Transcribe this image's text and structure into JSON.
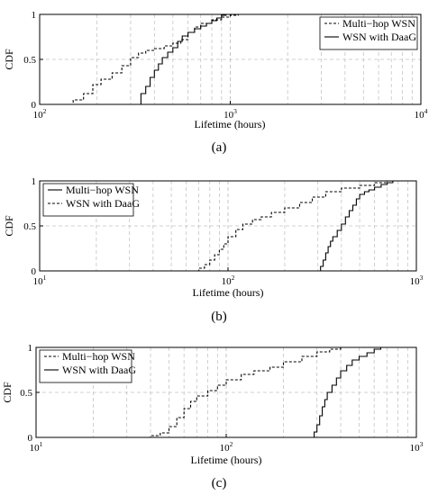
{
  "chart_data": [
    {
      "type": "line",
      "panel_label": "(a)",
      "xscale": "log",
      "xlim": [
        100,
        10000
      ],
      "ylim": [
        0,
        1
      ],
      "xticks": [
        "10",
        "10",
        "10"
      ],
      "xtick_exponents": [
        "2",
        "3",
        "4"
      ],
      "yticks": [
        "0",
        "0.5",
        "1"
      ],
      "xlabel": "Lifetime (hours)",
      "ylabel": "CDF",
      "grid": true,
      "legend_position": "top-right",
      "series": [
        {
          "name": "Multi−hop WSN",
          "style": "dashed",
          "x": [
            130,
            150,
            170,
            190,
            210,
            240,
            270,
            300,
            330,
            360,
            400,
            450,
            500,
            550,
            600,
            650,
            700,
            800,
            900,
            1000,
            1100
          ],
          "y": [
            0.0,
            0.05,
            0.12,
            0.22,
            0.28,
            0.35,
            0.43,
            0.52,
            0.57,
            0.6,
            0.62,
            0.65,
            0.68,
            0.72,
            0.8,
            0.86,
            0.9,
            0.94,
            0.97,
            0.99,
            1.0
          ]
        },
        {
          "name": "WSN with DaaG",
          "style": "solid",
          "x": [
            320,
            340,
            360,
            380,
            400,
            420,
            440,
            470,
            500,
            530,
            560,
            600,
            650,
            700,
            750,
            800,
            850,
            900,
            950
          ],
          "y": [
            0.0,
            0.12,
            0.2,
            0.3,
            0.38,
            0.45,
            0.52,
            0.58,
            0.63,
            0.7,
            0.76,
            0.8,
            0.84,
            0.87,
            0.9,
            0.93,
            0.96,
            0.99,
            1.0
          ]
        }
      ]
    },
    {
      "type": "line",
      "panel_label": "(b)",
      "xscale": "log",
      "xlim": [
        10,
        1000
      ],
      "ylim": [
        0,
        1
      ],
      "xticks": [
        "10",
        "10",
        "10"
      ],
      "xtick_exponents": [
        "1",
        "2",
        "3"
      ],
      "yticks": [
        "0",
        "0.5",
        "1"
      ],
      "xlabel": "Lifetime (hours)",
      "ylabel": "CDF",
      "grid": true,
      "legend_position": "top-left",
      "series": [
        {
          "name": "Multi−hop WSN",
          "style": "solid",
          "x": [
            300,
            310,
            320,
            330,
            340,
            350,
            360,
            380,
            400,
            420,
            440,
            460,
            480,
            500,
            530,
            560,
            600,
            650,
            700,
            750
          ],
          "y": [
            0.0,
            0.05,
            0.12,
            0.2,
            0.27,
            0.33,
            0.38,
            0.45,
            0.52,
            0.6,
            0.67,
            0.73,
            0.8,
            0.85,
            0.88,
            0.9,
            0.93,
            0.96,
            0.98,
            1.0
          ]
        },
        {
          "name": "WSN with DaaG",
          "style": "dashed",
          "x": [
            65,
            70,
            75,
            80,
            85,
            90,
            95,
            100,
            110,
            120,
            135,
            150,
            170,
            200,
            240,
            280,
            330,
            400,
            500,
            600,
            700
          ],
          "y": [
            0.0,
            0.03,
            0.07,
            0.12,
            0.18,
            0.24,
            0.3,
            0.38,
            0.46,
            0.52,
            0.57,
            0.6,
            0.65,
            0.7,
            0.76,
            0.82,
            0.88,
            0.92,
            0.95,
            0.98,
            1.0
          ]
        }
      ]
    },
    {
      "type": "line",
      "panel_label": "(c)",
      "xscale": "log",
      "xlim": [
        10,
        1000
      ],
      "ylim": [
        0,
        1
      ],
      "xticks": [
        "10",
        "10",
        "10"
      ],
      "xtick_exponents": [
        "1",
        "2",
        "3"
      ],
      "yticks": [
        "0",
        "0.5",
        "1"
      ],
      "xlabel": "Lifetime (hours)",
      "ylabel": "CDF",
      "grid": true,
      "legend_position": "top-left",
      "series": [
        {
          "name": "Multi−hop WSN",
          "style": "dashed",
          "x": [
            35,
            40,
            45,
            50,
            55,
            60,
            65,
            70,
            80,
            90,
            100,
            120,
            140,
            170,
            200,
            250,
            300,
            350,
            400
          ],
          "y": [
            0.0,
            0.02,
            0.05,
            0.12,
            0.22,
            0.32,
            0.4,
            0.46,
            0.52,
            0.58,
            0.64,
            0.7,
            0.74,
            0.78,
            0.84,
            0.9,
            0.95,
            0.98,
            1.0
          ]
        },
        {
          "name": "WSN with DaaG",
          "style": "solid",
          "x": [
            280,
            290,
            300,
            310,
            320,
            330,
            340,
            360,
            380,
            400,
            430,
            460,
            500,
            550,
            600,
            650
          ],
          "y": [
            0.0,
            0.06,
            0.14,
            0.24,
            0.34,
            0.42,
            0.5,
            0.58,
            0.66,
            0.74,
            0.8,
            0.86,
            0.9,
            0.94,
            0.98,
            1.0
          ]
        }
      ]
    }
  ]
}
